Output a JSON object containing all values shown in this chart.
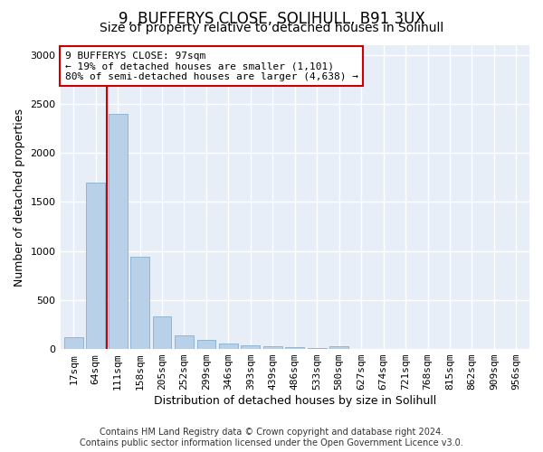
{
  "title": "9, BUFFERYS CLOSE, SOLIHULL, B91 3UX",
  "subtitle": "Size of property relative to detached houses in Solihull",
  "xlabel": "Distribution of detached houses by size in Solihull",
  "ylabel": "Number of detached properties",
  "footer_line1": "Contains HM Land Registry data © Crown copyright and database right 2024.",
  "footer_line2": "Contains public sector information licensed under the Open Government Licence v3.0.",
  "bar_labels": [
    "17sqm",
    "64sqm",
    "111sqm",
    "158sqm",
    "205sqm",
    "252sqm",
    "299sqm",
    "346sqm",
    "393sqm",
    "439sqm",
    "486sqm",
    "533sqm",
    "580sqm",
    "627sqm",
    "674sqm",
    "721sqm",
    "768sqm",
    "815sqm",
    "862sqm",
    "909sqm",
    "956sqm"
  ],
  "bar_values": [
    120,
    1700,
    2400,
    940,
    330,
    140,
    90,
    55,
    35,
    25,
    15,
    10,
    30,
    5,
    5,
    5,
    3,
    2,
    2,
    2,
    2
  ],
  "bar_color": "#b8d0e8",
  "bar_edgecolor": "#88afd0",
  "vline_x_index": 1.5,
  "vline_color": "#cc0000",
  "annotation_text": "9 BUFFERYS CLOSE: 97sqm\n← 19% of detached houses are smaller (1,101)\n80% of semi-detached houses are larger (4,638) →",
  "annotation_box_facecolor": "#ffffff",
  "annotation_box_edgecolor": "#cc0000",
  "ylim": [
    0,
    3100
  ],
  "yticks": [
    0,
    500,
    1000,
    1500,
    2000,
    2500,
    3000
  ],
  "plot_bg_color": "#e8eef8",
  "fig_bg_color": "#ffffff",
  "grid_color": "#ffffff",
  "title_fontsize": 12,
  "subtitle_fontsize": 10,
  "label_fontsize": 9,
  "tick_fontsize": 8,
  "annot_fontsize": 8,
  "footer_fontsize": 7
}
